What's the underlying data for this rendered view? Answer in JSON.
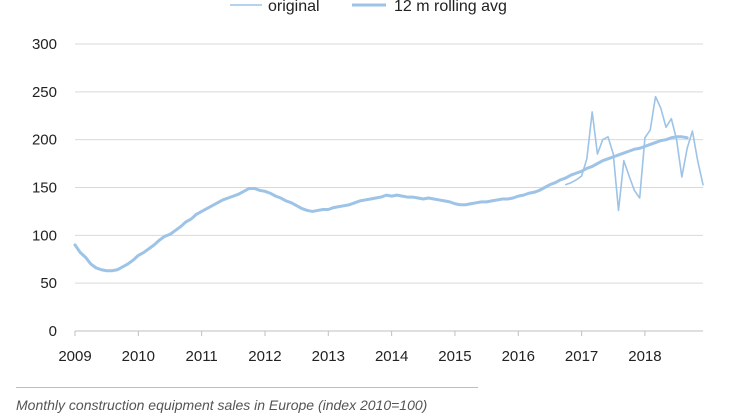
{
  "caption": "Monthly construction equipment sales in Europe (index 2010=100)",
  "chart_data": {
    "type": "line",
    "title": "",
    "xlabel": "",
    "ylabel": "",
    "ylim": [
      0,
      300
    ],
    "xlim": [
      2009,
      2018.917
    ],
    "yticks": [
      0,
      50,
      100,
      150,
      200,
      250,
      300
    ],
    "xticks": [
      "2009",
      "2010",
      "2011",
      "2012",
      "2013",
      "2014",
      "2015",
      "2016",
      "2017",
      "2018"
    ],
    "grid": "horizontal",
    "legend_position": "top",
    "colors": {
      "original": "#9dc3e6",
      "rolling": "#9dc3e6"
    },
    "series": [
      {
        "name": "original",
        "x": [
          2016.75,
          2016.833,
          2016.917,
          2017.0,
          2017.083,
          2017.167,
          2017.25,
          2017.333,
          2017.417,
          2017.5,
          2017.583,
          2017.667,
          2017.75,
          2017.833,
          2017.917,
          2018.0,
          2018.083,
          2018.167,
          2018.25,
          2018.333,
          2018.417,
          2018.5,
          2018.583,
          2018.667,
          2018.75,
          2018.833,
          2018.917
        ],
        "values": [
          153,
          155,
          158,
          162,
          180,
          229,
          185,
          200,
          203,
          185,
          126,
          178,
          162,
          147,
          139,
          202,
          210,
          245,
          233,
          213,
          222,
          200,
          161,
          191,
          209,
          178,
          153
        ]
      },
      {
        "name": "12 m rolling avg",
        "x": [
          2009.0,
          2009.083,
          2009.167,
          2009.25,
          2009.333,
          2009.417,
          2009.5,
          2009.583,
          2009.667,
          2009.75,
          2009.833,
          2009.917,
          2010.0,
          2010.083,
          2010.167,
          2010.25,
          2010.333,
          2010.417,
          2010.5,
          2010.583,
          2010.667,
          2010.75,
          2010.833,
          2010.917,
          2011.0,
          2011.083,
          2011.167,
          2011.25,
          2011.333,
          2011.417,
          2011.5,
          2011.583,
          2011.667,
          2011.75,
          2011.833,
          2011.917,
          2012.0,
          2012.083,
          2012.167,
          2012.25,
          2012.333,
          2012.417,
          2012.5,
          2012.583,
          2012.667,
          2012.75,
          2012.833,
          2012.917,
          2013.0,
          2013.083,
          2013.167,
          2013.25,
          2013.333,
          2013.417,
          2013.5,
          2013.583,
          2013.667,
          2013.75,
          2013.833,
          2013.917,
          2014.0,
          2014.083,
          2014.167,
          2014.25,
          2014.333,
          2014.417,
          2014.5,
          2014.583,
          2014.667,
          2014.75,
          2014.833,
          2014.917,
          2015.0,
          2015.083,
          2015.167,
          2015.25,
          2015.333,
          2015.417,
          2015.5,
          2015.583,
          2015.667,
          2015.75,
          2015.833,
          2015.917,
          2016.0,
          2016.083,
          2016.167,
          2016.25,
          2016.333,
          2016.417,
          2016.5,
          2016.583,
          2016.667,
          2016.75,
          2016.833,
          2016.917,
          2017.0,
          2017.083,
          2017.167,
          2017.25,
          2017.333,
          2017.417,
          2017.5,
          2017.583,
          2017.667,
          2017.75,
          2017.833,
          2017.917,
          2018.0,
          2018.083,
          2018.167,
          2018.25,
          2018.333,
          2018.417,
          2018.5,
          2018.583,
          2018.667
        ],
        "values": [
          90,
          82,
          77,
          70,
          66,
          64,
          63,
          63,
          64,
          67,
          70,
          74,
          79,
          82,
          86,
          90,
          95,
          99,
          101,
          105,
          109,
          114,
          117,
          122,
          125,
          128,
          131,
          134,
          137,
          139,
          141,
          143,
          146,
          149,
          149,
          147,
          146,
          144,
          141,
          139,
          136,
          134,
          131,
          128,
          126,
          125,
          126,
          127,
          127,
          129,
          130,
          131,
          132,
          134,
          136,
          137,
          138,
          139,
          140,
          142,
          141,
          142,
          141,
          140,
          140,
          139,
          138,
          139,
          138,
          137,
          136,
          135,
          133,
          132,
          132,
          133,
          134,
          135,
          135,
          136,
          137,
          138,
          138,
          139,
          141,
          142,
          144,
          145,
          147,
          150,
          153,
          155,
          158,
          160,
          163,
          165,
          167,
          170,
          172,
          175,
          178,
          180,
          182,
          184,
          186,
          188,
          190,
          191,
          193,
          195,
          197,
          199,
          200,
          202,
          203,
          203,
          202
        ]
      }
    ]
  }
}
